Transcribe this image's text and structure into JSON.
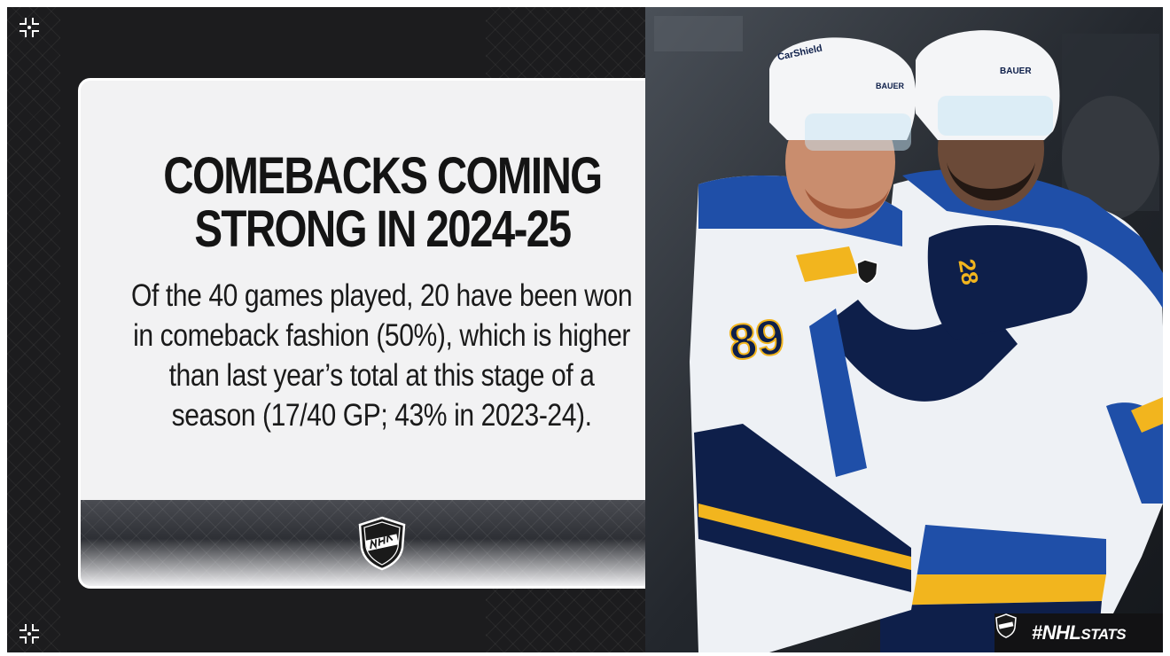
{
  "headline": {
    "line1": "COMEBACKS COMING",
    "line2": "STRONG IN 2024-25"
  },
  "body": {
    "line1": "Of the 40 games played, 20 have been won",
    "line2": "in comeback fashion (50%), which is higher",
    "line3": "than last year’s total at this stage of a",
    "line4": "season (17/40 GP; 43% in 2023-24)."
  },
  "hashtag": {
    "hash": "#NHL",
    "word": "STATS"
  },
  "photo": {
    "jersey_number": "89",
    "glove_number": "28",
    "helmet_brand_1": "BAUER",
    "helmet_brand_2": "BAUER",
    "sponsor": "CarShield"
  },
  "colors": {
    "background": "#1c1c1e",
    "card": "#f2f2f3",
    "blues_royal": "#1f4fa8",
    "blues_navy": "#0e1f4a",
    "blues_gold": "#f2b51e"
  },
  "icons": [
    "corner-mark-icon",
    "nhl-shield-icon"
  ]
}
